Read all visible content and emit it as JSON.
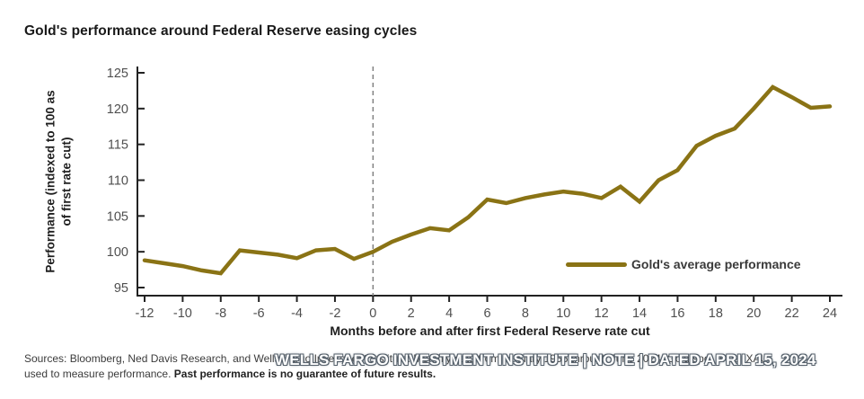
{
  "title": "Gold's performance around Federal Reserve easing cycles",
  "chart_data": {
    "type": "line",
    "title": "Gold's performance around Federal Reserve easing cycles",
    "xlabel": "Months before and after first Federal Reserve rate cut",
    "ylabel": "Performance (indexed to 100 as of first rate cut)",
    "ylabel_line1": "Performance (indexed to 100 as",
    "ylabel_line2": "of first rate cut)",
    "xlim": [
      -12,
      24
    ],
    "ylim": [
      95,
      125
    ],
    "xticks": [
      -12,
      -10,
      -8,
      -6,
      -4,
      -2,
      0,
      2,
      4,
      6,
      8,
      10,
      12,
      14,
      16,
      18,
      20,
      22,
      24
    ],
    "yticks": [
      95,
      100,
      105,
      110,
      115,
      120,
      125
    ],
    "grid": false,
    "legend_position": "inside-right",
    "vline_x": 0,
    "series": [
      {
        "name": "Gold's average performance",
        "color": "#8a7315",
        "x": [
          -12,
          -11,
          -10,
          -9,
          -8,
          -7,
          -6,
          -5,
          -4,
          -3,
          -2,
          -1,
          0,
          1,
          2,
          3,
          4,
          5,
          6,
          7,
          8,
          9,
          10,
          11,
          12,
          13,
          14,
          15,
          16,
          17,
          18,
          19,
          20,
          21,
          22,
          23,
          24
        ],
        "values": [
          98.8,
          98.4,
          98.0,
          97.4,
          97.0,
          100.2,
          99.9,
          99.6,
          99.1,
          100.2,
          100.4,
          99.0,
          100.0,
          101.4,
          102.4,
          103.3,
          103.0,
          104.8,
          107.3,
          106.8,
          107.5,
          108.0,
          108.4,
          108.1,
          107.5,
          109.1,
          107.0,
          110.0,
          111.4,
          114.8,
          116.2,
          117.2,
          120.0,
          123.0,
          121.6,
          120.1,
          120.3
        ]
      }
    ]
  },
  "footer": {
    "sources_line1": "Sources: Bloomberg, Ned Davis Research, and Wells Fargo Investment Institute. Monthly data from January 1956 through June 2024. Gold spot price (XAU)",
    "sources_line2_prefix": "used to measure performance. ",
    "sources_line2_bold": "Past performance is no guarantee of future results.",
    "watermark": "WELLS FARGO INVESTMENT INSTITUTE | NOTE | DATED APRIL 15, 2024"
  },
  "colors": {
    "line": "#8a7315",
    "axis": "#222222",
    "tick_label": "#4f4f4f",
    "dashed_line": "#828282",
    "title": "#191919",
    "source_text": "#3b3b3b",
    "watermark_fill": "#ffffff",
    "watermark_outline": "#55606b"
  }
}
